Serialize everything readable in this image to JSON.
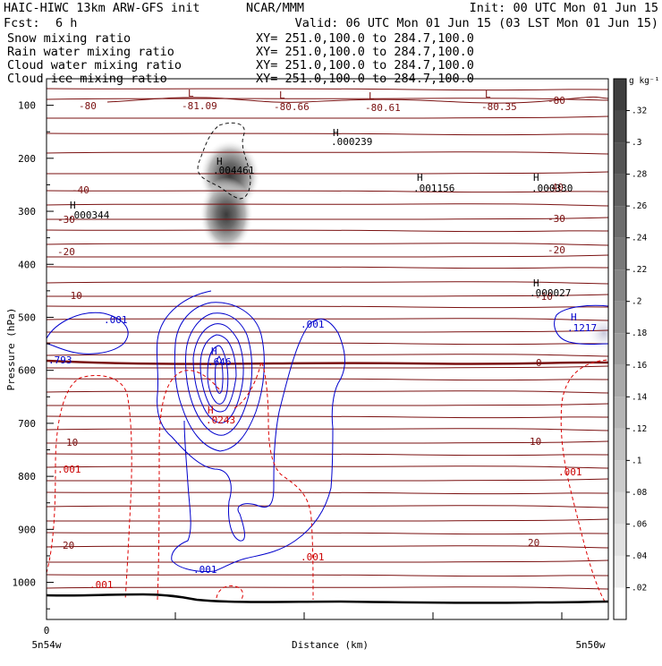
{
  "header": {
    "model": "HAIC-HIWC 13km ARW-GFS init",
    "center": "NCAR/MMM",
    "init": "Init: 00 UTC Mon 01 Jun 15",
    "fcst_label": "Fcst:",
    "fcst_value": "6 h",
    "valid": "Valid: 06 UTC Mon 01 Jun 15 (03 LST Mon 01 Jun 15)",
    "fields": [
      {
        "name": "Snow mixing ratio",
        "xy": "XY= 251.0,100.0 to 284.7,100.0",
        "color": "#000000"
      },
      {
        "name": "Rain water mixing ratio",
        "xy": "XY= 251.0,100.0 to 284.7,100.0",
        "color": "#d00000"
      },
      {
        "name": "Cloud water mixing ratio",
        "xy": "XY= 251.0,100.0 to 284.7,100.0",
        "color": "#0000cc"
      },
      {
        "name": "Cloud ice mixing ratio",
        "xy": "XY= 251.0,100.0 to 284.7,100.0",
        "color": "#000000"
      }
    ]
  },
  "chart_data": {
    "type": "contour",
    "xlabel": "Distance (km)",
    "ylabel": "Pressure (hPa)",
    "x_start_label": "5n54w",
    "x_end_label": "5n50w",
    "x_origin_label": "0",
    "yticks": [
      100,
      200,
      300,
      400,
      500,
      600,
      700,
      800,
      900,
      1000
    ],
    "ylim": [
      1070,
      50
    ],
    "colorbar": {
      "units": "g kg⁻¹",
      "levels": [
        ".02",
        ".04",
        ".06",
        ".08",
        ".1",
        ".12",
        ".14",
        ".16",
        ".18",
        ".2",
        ".22",
        ".24",
        ".26",
        ".28",
        ".3",
        ".32"
      ],
      "colors": [
        "#ffffff",
        "#ededed",
        "#e2e2e2",
        "#d7d7d7",
        "#cccccc",
        "#c1c1c1",
        "#b5b5b5",
        "#a9a9a9",
        "#9d9d9d",
        "#919191",
        "#858585",
        "#797979",
        "#6d6d6d",
        "#616161",
        "#555555",
        "#4a4a4a",
        "#3f3f3f"
      ]
    },
    "temperature_labels": [
      "-80",
      "-40",
      "-30",
      "-20",
      "-10",
      "0",
      "10",
      "20"
    ],
    "temperature_extrema": [
      {
        "type": "L",
        "value": "-81.09"
      },
      {
        "type": "L",
        "value": "-80.66"
      },
      {
        "type": "L",
        "value": "-80.61"
      },
      {
        "type": "L",
        "value": "-80.35"
      }
    ],
    "snow_maximum": {
      "type": "H",
      "value": ".004461"
    },
    "ice_maxima": [
      {
        "type": "H",
        "value": ".000239"
      },
      {
        "type": "H",
        "value": ".001156"
      },
      {
        "type": "H",
        "value": ".000330"
      },
      {
        "type": "H",
        "value": ".000344"
      },
      {
        "type": "H",
        "value": ".000027"
      }
    ],
    "cloud_water_maxima": [
      {
        "type": "H",
        "value": ".646"
      },
      {
        "type": "H",
        "value": ".1217"
      }
    ],
    "cloud_water_labels": [
      ".001",
      ".001",
      ".001",
      ".793"
    ],
    "rain_maximum": {
      "type": "H",
      "value": ".0243"
    },
    "rain_labels": [
      ".001",
      ".001",
      ".001",
      ".001"
    ]
  }
}
